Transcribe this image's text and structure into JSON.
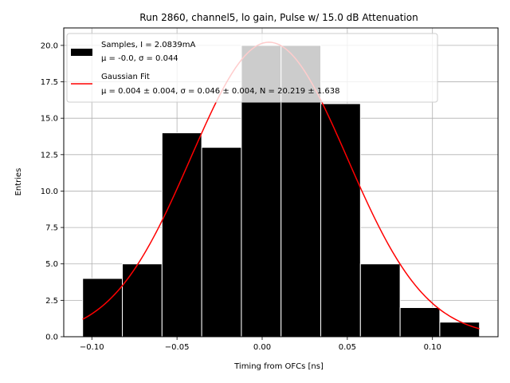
{
  "chart_data": {
    "type": "bar",
    "title": "Run 2860, channel5, lo gain, Pulse w/ 15.0 dB Attenuation",
    "xlabel": "Timing from OFCs [ns]",
    "ylabel": "Entries",
    "xlim": [
      -0.1165,
      0.1385
    ],
    "ylim": [
      0,
      21.2
    ],
    "grid": true,
    "legend_position": "upper-left",
    "x_ticks": [
      -0.1,
      -0.05,
      0.0,
      0.05,
      0.1
    ],
    "x_tick_labels": [
      "−0.10",
      "−0.05",
      "0.00",
      "0.05",
      "0.10"
    ],
    "y_ticks": [
      0.0,
      2.5,
      5.0,
      7.5,
      10.0,
      12.5,
      15.0,
      17.5,
      20.0
    ],
    "y_tick_labels": [
      "0.0",
      "2.5",
      "5.0",
      "7.5",
      "10.0",
      "12.5",
      "15.0",
      "17.5",
      "20.0"
    ],
    "histogram": {
      "bin_edges": [
        -0.1054,
        -0.0821,
        -0.0588,
        -0.0355,
        -0.0122,
        0.0111,
        0.0344,
        0.0577,
        0.081,
        0.1043,
        0.1276
      ],
      "counts": [
        4,
        5,
        14,
        13,
        20,
        20,
        16,
        5,
        2,
        1
      ],
      "color": "#000000",
      "edge_color": "#ffffff"
    },
    "fit": {
      "type": "gaussian",
      "mu": 0.004,
      "sigma": 0.046,
      "N": 20.219,
      "color": "#ff0000"
    },
    "legend": [
      {
        "line1": "Samples, I = 2.0839mA",
        "line2": "μ = -0.0, σ = 0.044"
      },
      {
        "line1": "Gaussian Fit",
        "line2": "μ = 0.004 ± 0.004, σ = 0.046 ± 0.004, N = 20.219 ± 1.638"
      }
    ]
  }
}
